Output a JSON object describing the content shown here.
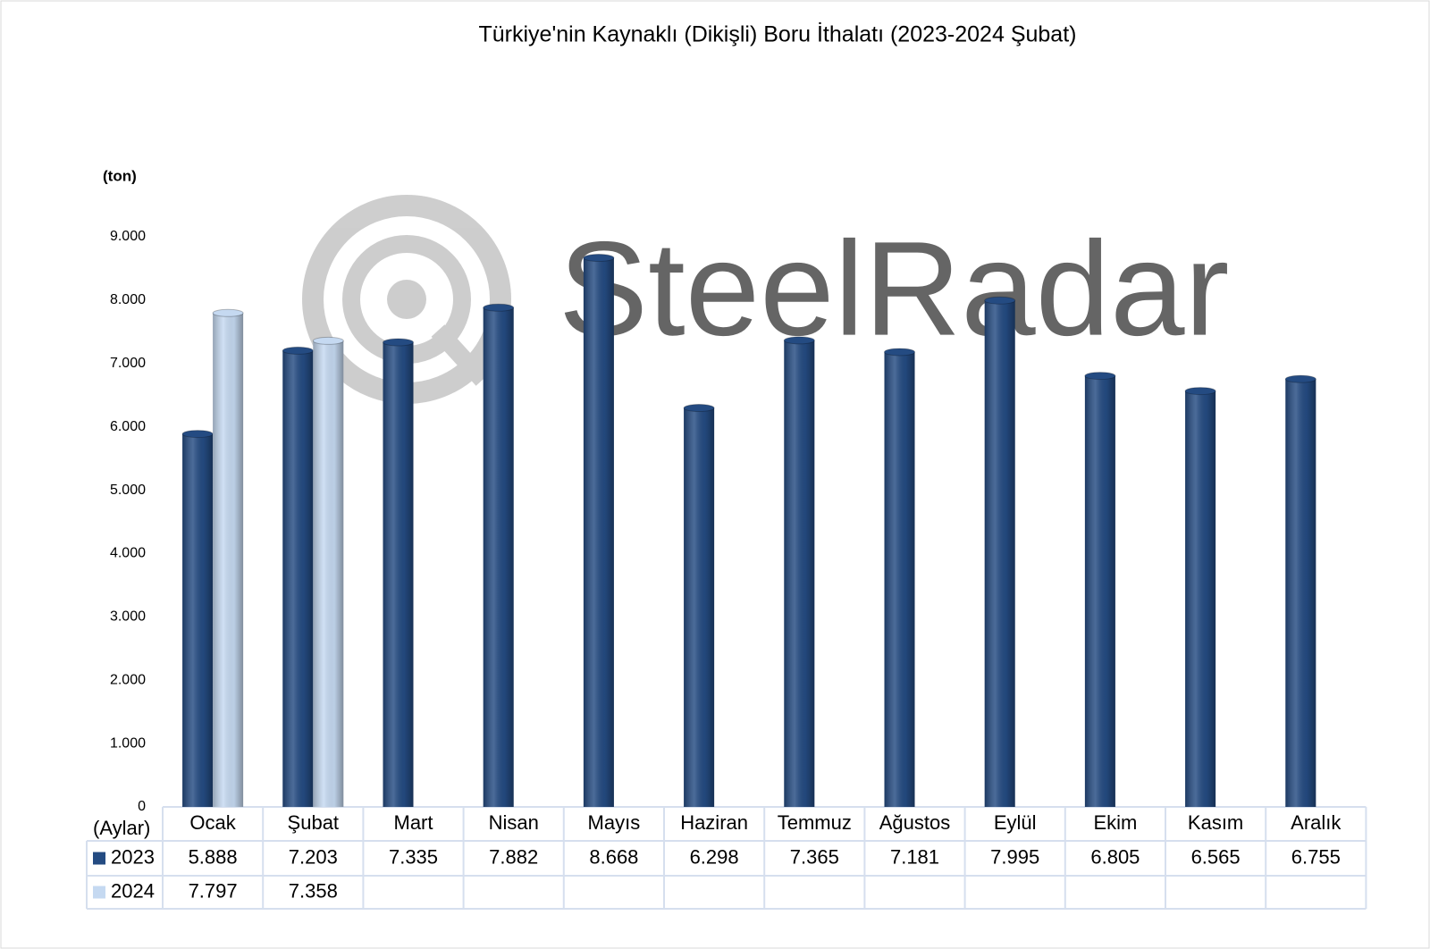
{
  "chart_data": {
    "type": "bar",
    "title": "Türkiye'nin Kaynaklı (Dikişli) Boru İthalatı (2023-2024 Şubat)",
    "y_label": "(ton)",
    "x_label": "(Aylar)",
    "watermark": "SteelRadar",
    "categories": [
      "Ocak",
      "Şubat",
      "Mart",
      "Nisan",
      "Mayıs",
      "Haziran",
      "Temmuz",
      "Ağustos",
      "Eylül",
      "Ekim",
      "Kasım",
      "Aralık"
    ],
    "series": [
      {
        "name": "2023",
        "color": "#244b82",
        "values": [
          5888,
          7203,
          7335,
          7882,
          8668,
          6298,
          7365,
          7181,
          7995,
          6805,
          6565,
          6755
        ],
        "value_labels": [
          "5.888",
          "7.203",
          "7.335",
          "7.882",
          "8.668",
          "6.298",
          "7.365",
          "7.181",
          "7.995",
          "6.805",
          "6.565",
          "6.755"
        ]
      },
      {
        "name": "2024",
        "color": "#c5d9f1",
        "values": [
          7797,
          7358,
          null,
          null,
          null,
          null,
          null,
          null,
          null,
          null,
          null,
          null
        ],
        "value_labels": [
          "7.797",
          "7.358",
          null,
          null,
          null,
          null,
          null,
          null,
          null,
          null,
          null,
          null
        ]
      }
    ],
    "ylim": [
      0,
      9000
    ],
    "yticks": [
      0,
      {
        "value": 1000,
        "label": "1.000"
      },
      {
        "value": 2000,
        "label": "2.000"
      },
      {
        "value": 3000,
        "label": "3.000"
      },
      {
        "value": 4000,
        "label": "4.000"
      },
      {
        "value": 5000,
        "label": "5.000"
      },
      {
        "value": 6000,
        "label": "6.000"
      },
      {
        "value": 7000,
        "label": "7.000"
      },
      {
        "value": 8000,
        "label": "8.000"
      },
      {
        "value": 9000,
        "label": "9.000"
      }
    ],
    "grid": false
  }
}
